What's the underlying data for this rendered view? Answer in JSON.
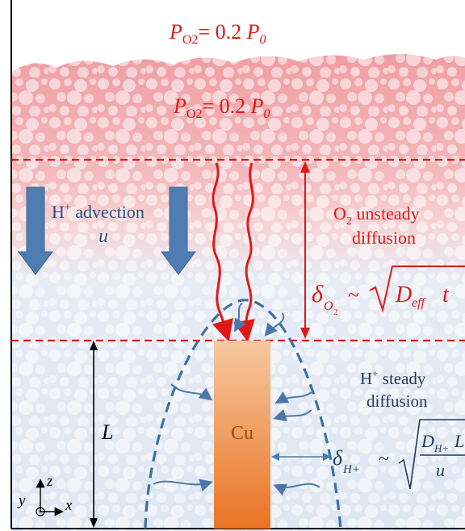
{
  "diagram": {
    "top_label": {
      "P": "P",
      "sub": "O2",
      "eq": "= 0.2 ",
      "P0": "P",
      "P0sub": "0"
    },
    "mid_label": {
      "P": "P",
      "sub": "O2",
      "eq": "= 0.2 ",
      "P0": "P",
      "P0sub": "0"
    },
    "advection": {
      "line1_pre": "H",
      "line1_sup": "+",
      "line1_post": " advection",
      "line2": "u"
    },
    "o2_diffusion": {
      "line1_pre": "O",
      "line1_sub": "2",
      "line1_post": " unsteady",
      "line2": "diffusion"
    },
    "o2_formula": {
      "delta": "δ",
      "sub_O": "O",
      "sub_2": "2",
      "tilde": "~",
      "D": "D",
      "D_sub": "eff",
      "t": "t"
    },
    "h_diffusion": {
      "line1_pre": "H",
      "line1_sup": "+",
      "line1_post": " steady",
      "line2": "diffusion"
    },
    "h_formula": {
      "delta": "δ",
      "sub": "H+",
      "tilde": "~",
      "num_D": "D",
      "num_sub": "H+",
      "num_L": "L",
      "den": "u"
    },
    "length_label": "L",
    "electrode_label": "Cu",
    "axes": {
      "y": "y",
      "z": "z",
      "x": "x"
    },
    "colors": {
      "red_layer": "#f1a8ac",
      "blue_layer": "#dfe7f1",
      "red_line": "#e01818",
      "blue_arrow": "#4a78ab",
      "electrode_top": "#f5c49a",
      "electrode_bottom": "#ea7a2a"
    }
  }
}
